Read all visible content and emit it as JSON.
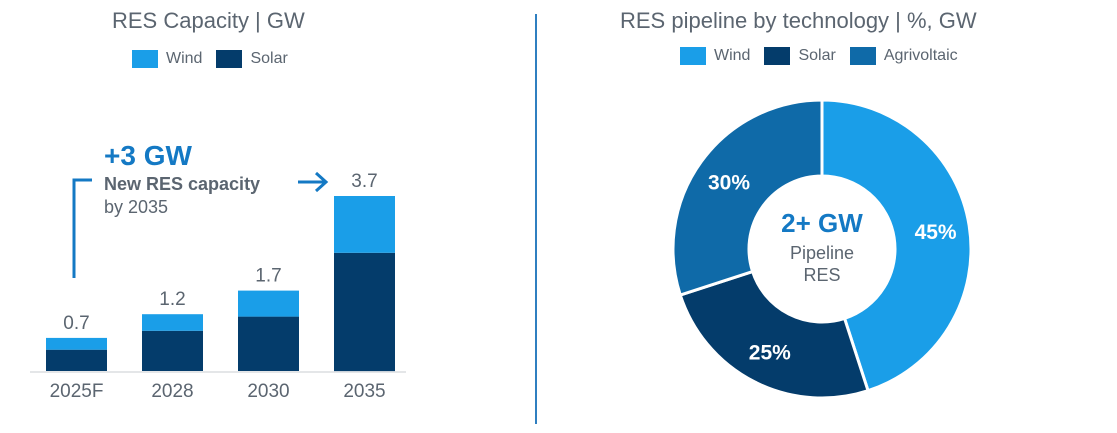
{
  "left_panel": {
    "title": "RES Capacity | GW",
    "legend": [
      {
        "label": "Wind",
        "color": "#1a9ee8"
      },
      {
        "label": "Solar",
        "color": "#043c6b"
      }
    ],
    "callout": {
      "headline": "+3 GW",
      "line1": "New RES capacity",
      "line2": "by 2035"
    }
  },
  "right_panel": {
    "title": "RES pipeline by technology | %, GW",
    "legend": [
      {
        "label": "Wind",
        "color": "#1a9ee8"
      },
      {
        "label": "Solar",
        "color": "#043c6b"
      },
      {
        "label": "Agrivoltaic",
        "color": "#0f6aa8"
      }
    ],
    "center": {
      "headline": "2+ GW",
      "line1": "Pipeline",
      "line2": "RES"
    }
  },
  "chart_data": [
    {
      "type": "bar",
      "stacked": true,
      "categories": [
        "2025F",
        "2028",
        "2030",
        "2035"
      ],
      "totals": [
        0.7,
        1.2,
        1.7,
        3.7
      ],
      "series": [
        {
          "name": "Solar",
          "color": "#043c6b",
          "values": [
            0.45,
            0.85,
            1.15,
            2.5
          ]
        },
        {
          "name": "Wind",
          "color": "#1a9ee8",
          "values": [
            0.25,
            0.35,
            0.55,
            1.2
          ]
        }
      ],
      "total_labels": [
        "0.7",
        "1.2",
        "1.7",
        "3.7"
      ]
    },
    {
      "type": "pie",
      "donut": true,
      "slices": [
        {
          "name": "Wind",
          "value": 45,
          "label": "45%",
          "color": "#1a9ee8"
        },
        {
          "name": "Solar",
          "value": 25,
          "label": "25%",
          "color": "#043c6b"
        },
        {
          "name": "Agrivoltaic",
          "value": 30,
          "label": "30%",
          "color": "#0f6aa8"
        }
      ]
    }
  ]
}
